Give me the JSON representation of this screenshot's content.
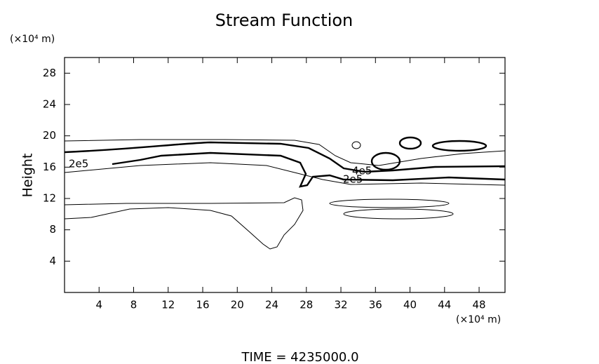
{
  "chart_data": {
    "type": "contour",
    "title": "Stream Function",
    "y_label": "Height",
    "y_unit": "(×10⁴ m)",
    "x_unit": "(×10⁴ m)",
    "xlim": [
      0,
      51
    ],
    "xticks": [
      4,
      8,
      12,
      16,
      20,
      24,
      28,
      32,
      36,
      40,
      44,
      48
    ],
    "ylim": [
      0,
      30
    ],
    "yticks": [
      4,
      8,
      12,
      16,
      20,
      24,
      28
    ],
    "contours": [
      {
        "level": 200000,
        "label": "2e5"
      },
      {
        "level": 400000,
        "label": "4e5"
      }
    ],
    "footer": "TIME  =  4235000.0"
  }
}
